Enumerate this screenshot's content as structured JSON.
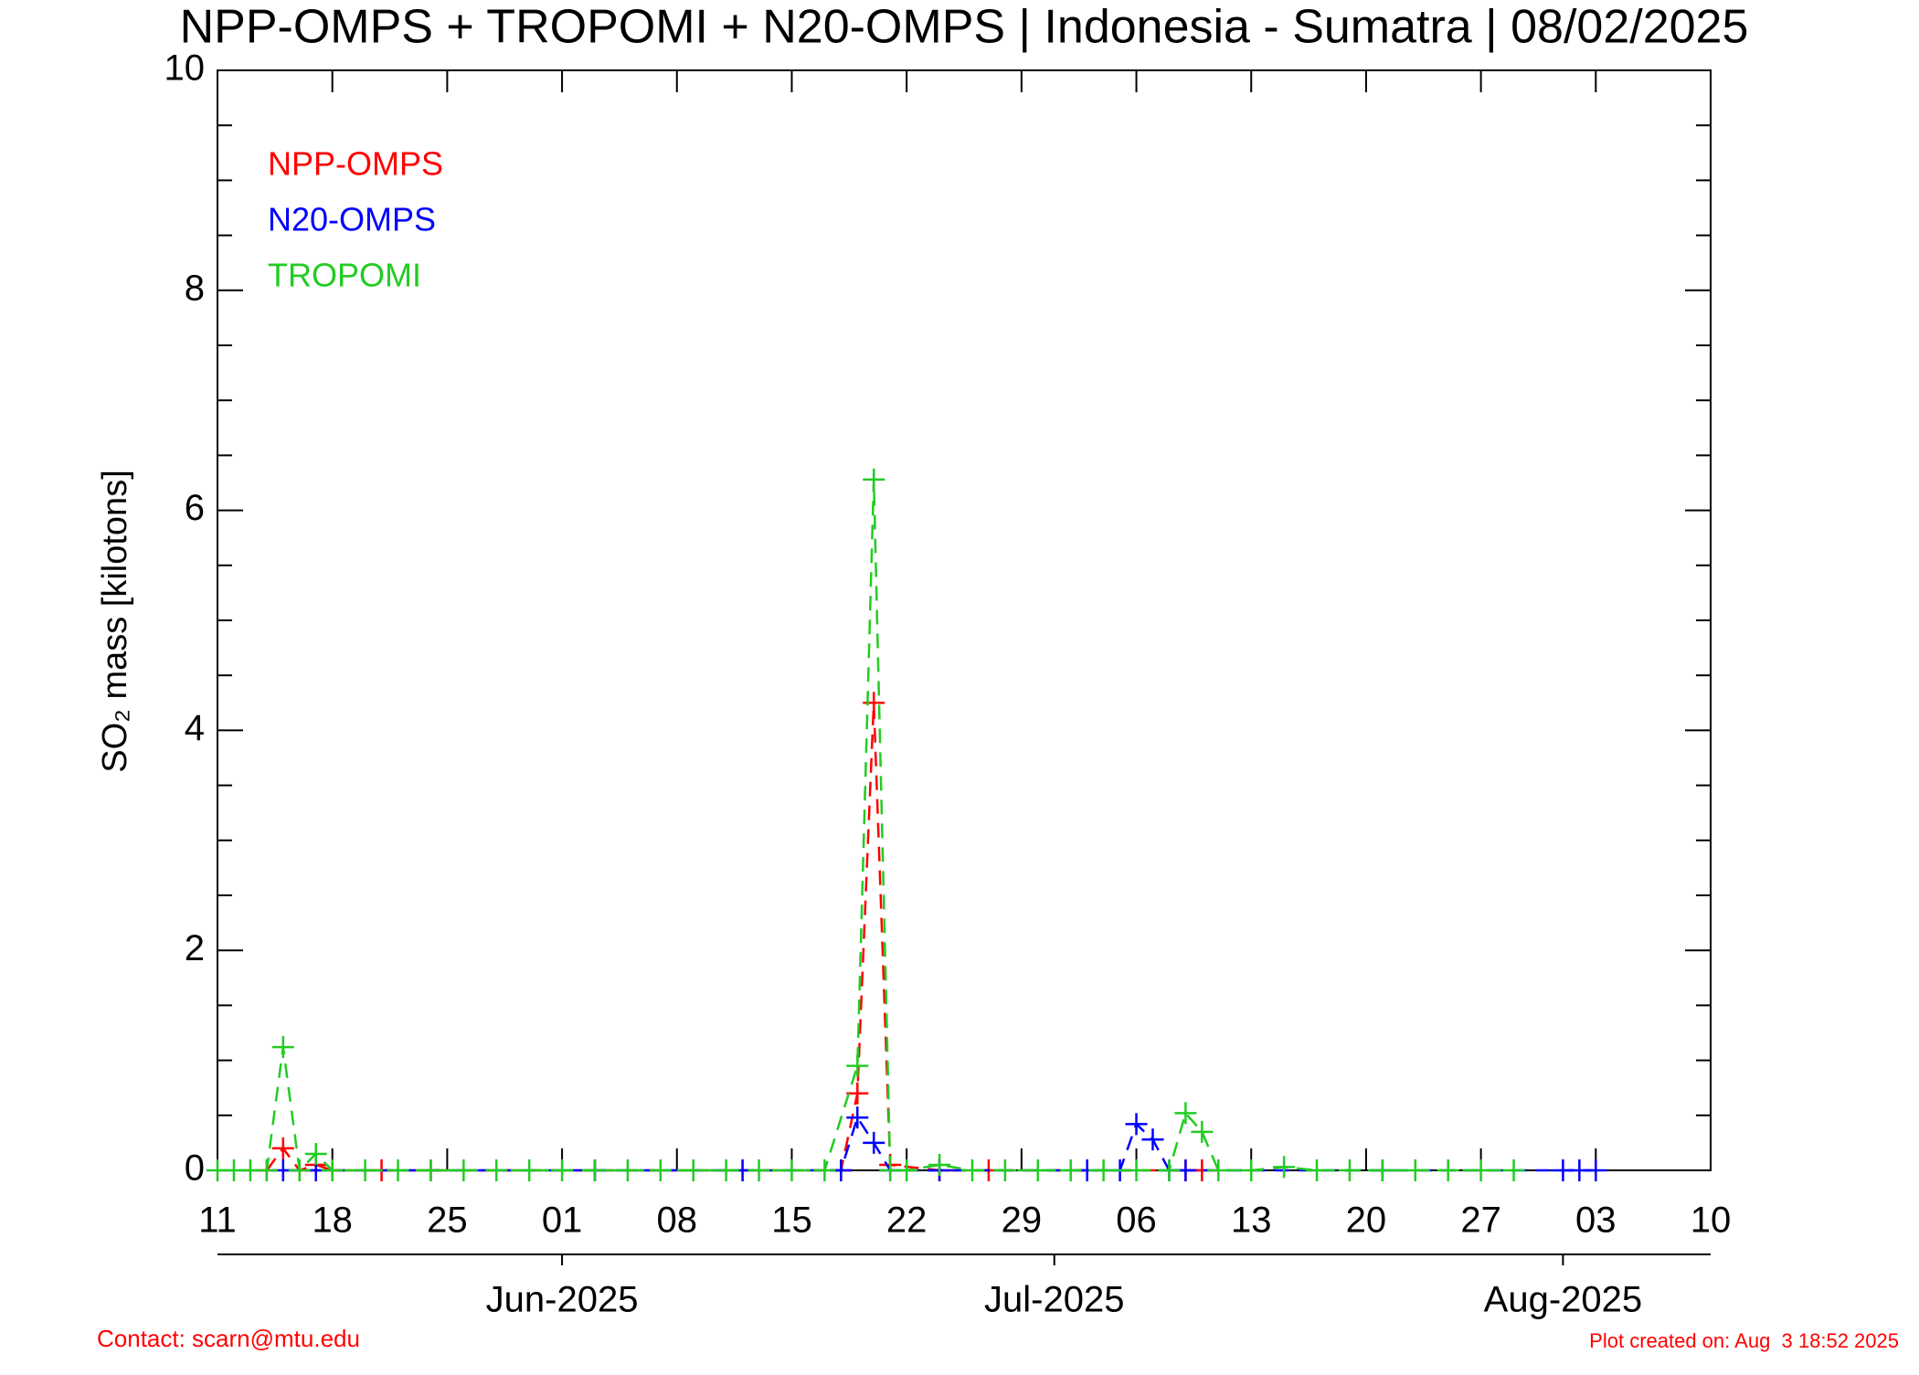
{
  "chart_data": {
    "type": "line",
    "title": "NPP-OMPS + TROPOMI + N20-OMPS | Indonesia - Sumatra | 08/02/2025",
    "ylabel": "SO₂ mass [kilotons]",
    "ylim": [
      0,
      10
    ],
    "yticks": [
      0,
      2,
      4,
      6,
      8,
      10
    ],
    "yticks_minor": [
      0.5,
      1,
      1.5,
      2.5,
      3,
      3.5,
      4.5,
      5,
      5.5,
      6.5,
      7,
      7.5,
      8.5,
      9,
      9.5
    ],
    "xlim": [
      "2025-05-11",
      "2025-08-10"
    ],
    "xticks": [
      {
        "value": "2025-05-11",
        "label": "11"
      },
      {
        "value": "2025-05-18",
        "label": "18"
      },
      {
        "value": "2025-05-25",
        "label": "25"
      },
      {
        "value": "2025-06-01",
        "label": "01"
      },
      {
        "value": "2025-06-08",
        "label": "08"
      },
      {
        "value": "2025-06-15",
        "label": "15"
      },
      {
        "value": "2025-06-22",
        "label": "22"
      },
      {
        "value": "2025-06-29",
        "label": "29"
      },
      {
        "value": "2025-07-06",
        "label": "06"
      },
      {
        "value": "2025-07-13",
        "label": "13"
      },
      {
        "value": "2025-07-20",
        "label": "20"
      },
      {
        "value": "2025-07-27",
        "label": "27"
      },
      {
        "value": "2025-08-03",
        "label": "03"
      },
      {
        "value": "2025-08-10",
        "label": "10"
      }
    ],
    "xticks_month": [
      {
        "value": "2025-06-01",
        "label": "Jun-2025"
      },
      {
        "value": "2025-07-01",
        "label": "Jul-2025"
      },
      {
        "value": "2025-08-01",
        "label": "Aug-2025"
      }
    ],
    "series": [
      {
        "name": "NPP-OMPS",
        "color": "#ff0000",
        "x": [
          "2025-05-14",
          "2025-05-15",
          "2025-05-16",
          "2025-05-17",
          "2025-05-18",
          "2025-05-21",
          "2025-05-24",
          "2025-06-03",
          "2025-06-18",
          "2025-06-19",
          "2025-06-20",
          "2025-06-21",
          "2025-06-24",
          "2025-06-27",
          "2025-07-09",
          "2025-07-10"
        ],
        "values": [
          0,
          0.2,
          0,
          0.05,
          0,
          0,
          0,
          0,
          0,
          0.7,
          4.25,
          0.05,
          0,
          0,
          0,
          0
        ]
      },
      {
        "name": "N20-OMPS",
        "color": "#0000ff",
        "x": [
          "2025-05-15",
          "2025-05-17",
          "2025-06-03",
          "2025-06-12",
          "2025-06-18",
          "2025-06-19",
          "2025-06-20",
          "2025-06-21",
          "2025-06-24",
          "2025-07-03",
          "2025-07-05",
          "2025-07-06",
          "2025-07-07",
          "2025-07-08",
          "2025-07-09",
          "2025-07-21",
          "2025-08-01",
          "2025-08-02",
          "2025-08-03"
        ],
        "values": [
          0,
          0,
          0,
          0,
          0,
          0.48,
          0.25,
          0,
          0,
          0,
          0,
          0.42,
          0.28,
          0,
          0,
          0,
          0,
          0,
          0
        ]
      },
      {
        "name": "TROPOMI",
        "color": "#22cc22",
        "x": [
          "2025-05-11",
          "2025-05-12",
          "2025-05-13",
          "2025-05-14",
          "2025-05-15",
          "2025-05-16",
          "2025-05-17",
          "2025-05-18",
          "2025-05-20",
          "2025-05-22",
          "2025-05-24",
          "2025-05-26",
          "2025-05-28",
          "2025-05-30",
          "2025-06-01",
          "2025-06-03",
          "2025-06-05",
          "2025-06-07",
          "2025-06-09",
          "2025-06-11",
          "2025-06-13",
          "2025-06-15",
          "2025-06-17",
          "2025-06-19",
          "2025-06-20",
          "2025-06-21",
          "2025-06-22",
          "2025-06-24",
          "2025-06-26",
          "2025-06-28",
          "2025-06-30",
          "2025-07-02",
          "2025-07-04",
          "2025-07-06",
          "2025-07-08",
          "2025-07-09",
          "2025-07-10",
          "2025-07-11",
          "2025-07-13",
          "2025-07-15",
          "2025-07-17",
          "2025-07-19",
          "2025-07-21",
          "2025-07-23",
          "2025-07-25",
          "2025-07-27",
          "2025-07-29"
        ],
        "values": [
          0,
          0,
          0,
          0,
          1.12,
          0,
          0.15,
          0,
          0,
          0,
          0,
          0,
          0,
          0,
          0,
          0,
          0,
          0,
          0,
          0,
          0,
          0,
          0,
          0.95,
          6.28,
          0,
          0,
          0.05,
          0,
          0,
          0,
          0,
          0,
          0,
          0,
          0.52,
          0.35,
          0,
          0,
          0.03,
          0,
          0,
          0,
          0,
          0,
          0,
          0
        ]
      }
    ],
    "contact": "Contact: scarn@mtu.edu",
    "created": "Plot created on: Aug  3 18:52 2025"
  }
}
